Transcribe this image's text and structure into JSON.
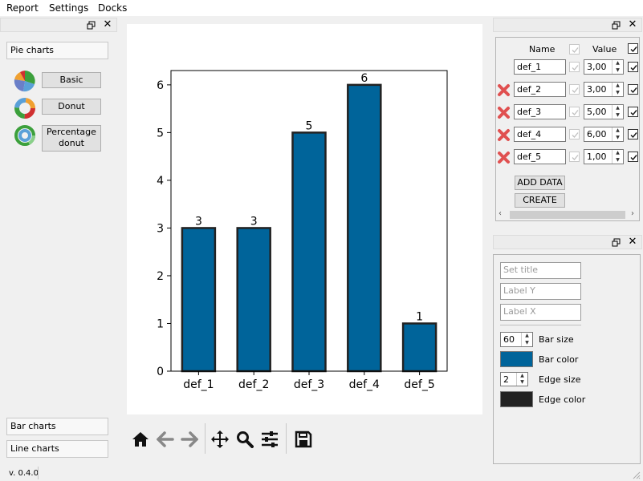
{
  "menu": [
    "Report",
    "Settings",
    "Docks"
  ],
  "left_panel": {
    "pie_header": "Pie charts",
    "pie_buttons": [
      "Basic",
      "Donut",
      "Percentage donut"
    ],
    "bar_header": "Bar charts",
    "line_header": "Line charts",
    "version": "v. 0.4.0"
  },
  "chart_data": {
    "type": "bar",
    "categories": [
      "def_1",
      "def_2",
      "def_3",
      "def_4",
      "def_5"
    ],
    "values": [
      3,
      3,
      5,
      6,
      1
    ],
    "data_labels": [
      "3",
      "3",
      "5",
      "6",
      "1"
    ],
    "ylim": [
      0,
      6.3
    ],
    "yticks": [
      0,
      1,
      2,
      3,
      4,
      5,
      6
    ],
    "title": "",
    "xlabel": "",
    "ylabel": "",
    "bar_color": "#00649a",
    "edge_color": "#222222",
    "grid": false
  },
  "toolbar": [
    "home-icon",
    "back-icon",
    "forward-icon",
    "pan-icon",
    "zoom-icon",
    "configure-icon",
    "save-icon"
  ],
  "data_table": {
    "col_name": "Name",
    "col_value": "Value",
    "rows": [
      {
        "name": "def_1",
        "value": "3,00",
        "deletable": false
      },
      {
        "name": "def_2",
        "value": "3,00",
        "deletable": true
      },
      {
        "name": "def_3",
        "value": "5,00",
        "deletable": true
      },
      {
        "name": "def_4",
        "value": "6,00",
        "deletable": true
      },
      {
        "name": "def_5",
        "value": "1,00",
        "deletable": true
      }
    ],
    "add_label": "ADD DATA",
    "create_label": "CREATE"
  },
  "settings": {
    "title_placeholder": "Set title",
    "label_y_placeholder": "Label Y",
    "label_x_placeholder": "Label X",
    "bar_size": "60",
    "bar_size_label": "Bar size",
    "bar_color_label": "Bar color",
    "edge_size": "2",
    "edge_size_label": "Edge size",
    "edge_color_label": "Edge color",
    "bar_color": "#00649a",
    "edge_color": "#222222"
  }
}
